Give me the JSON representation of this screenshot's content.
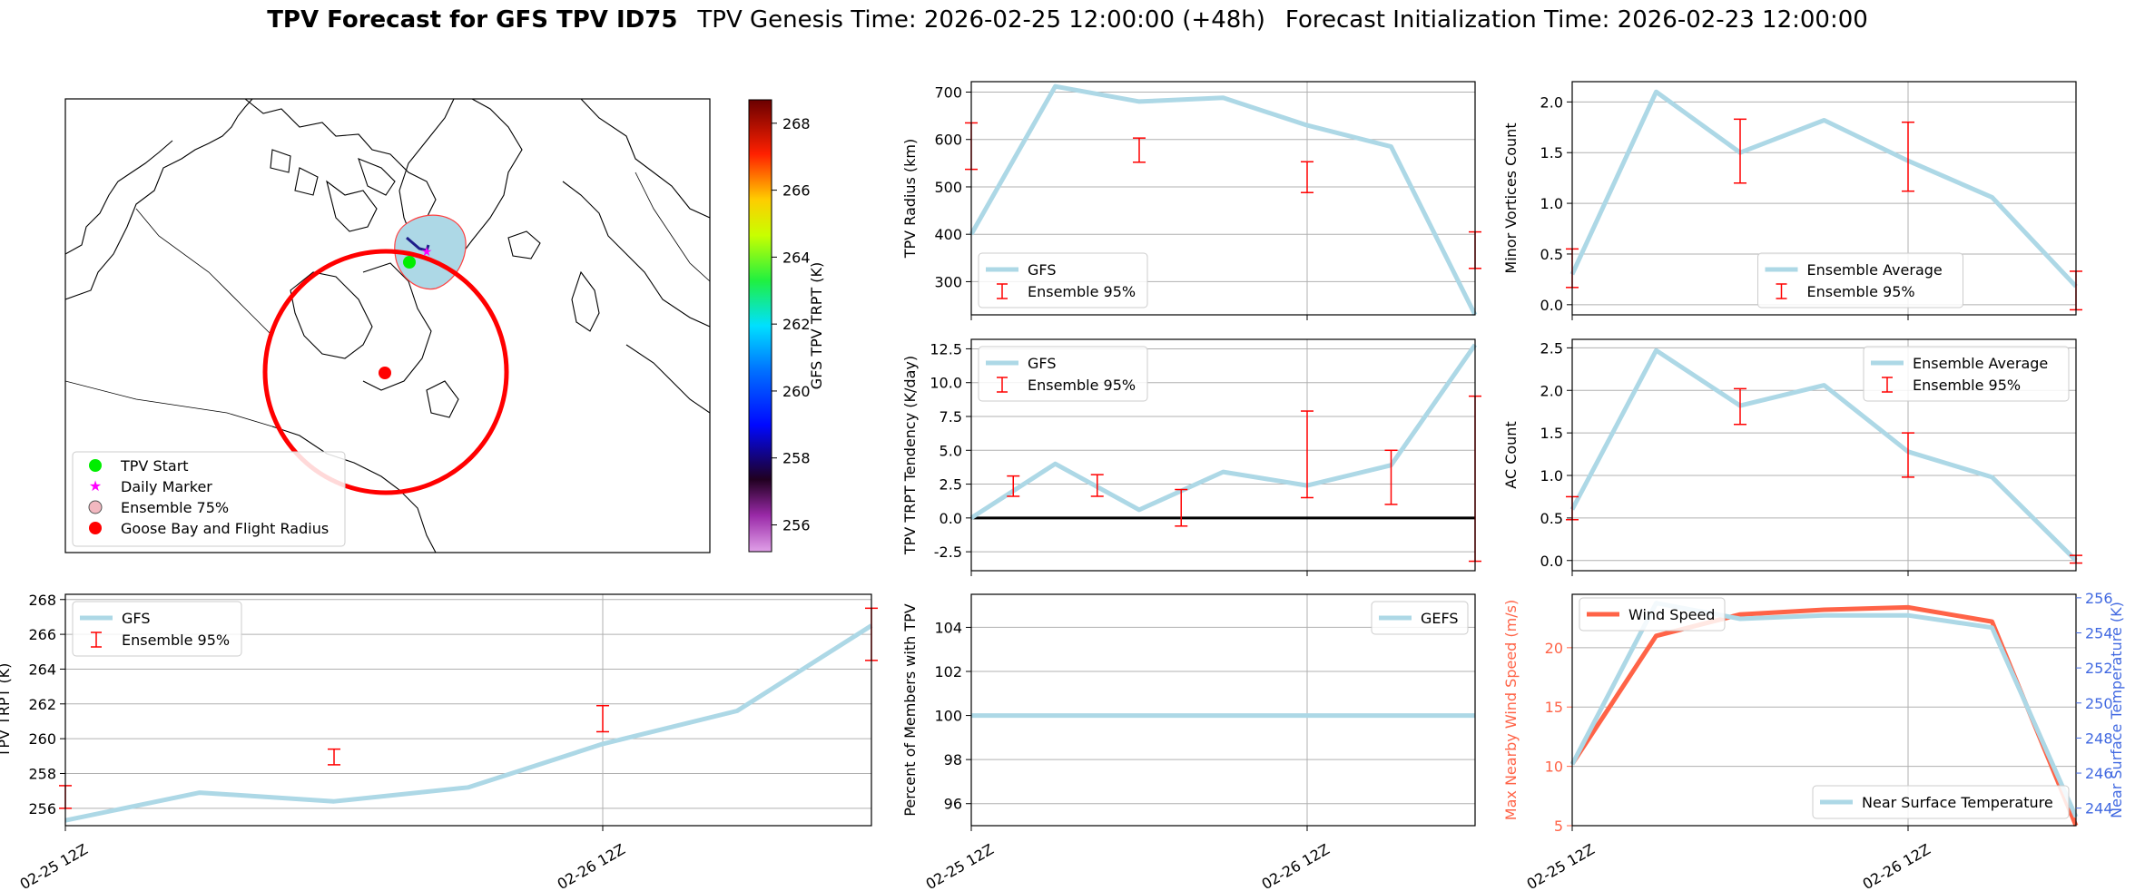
{
  "title": {
    "bold": "TPV Forecast for GFS TPV ID75",
    "genesis": "TPV Genesis Time: 2026-02-25 12:00:00 (+48h)",
    "init": "Forecast Initialization Time: 2026-02-23 12:00:00"
  },
  "colors": {
    "gfs": "#add8e6",
    "ensemble": "#ff0000",
    "wind": "#ff6347",
    "temp": "#4169e1",
    "grid": "#b0b0b0"
  },
  "map": {
    "colorbar": {
      "label": "GFS TPV TRPT (K)",
      "ticks": [
        256,
        258,
        260,
        262,
        264,
        266,
        268
      ],
      "range": [
        255.2,
        268.7
      ]
    },
    "legend": [
      {
        "label": "TPV Start",
        "marker": "green-dot"
      },
      {
        "label": "Daily Marker",
        "marker": "magenta-star"
      },
      {
        "label": "Ensemble 75%",
        "marker": "pink-circle"
      },
      {
        "label": "Goose Bay and Flight Radius",
        "marker": "red-dot"
      }
    ]
  },
  "x_ticks": [
    "02-25 12Z",
    "02-26 12Z"
  ],
  "chart_data": [
    {
      "id": "radius",
      "type": "line",
      "ylabel": "TPV Radius (km)",
      "ylim": [
        230,
        722
      ],
      "yticks": [
        300,
        400,
        500,
        600,
        700
      ],
      "x": [
        0,
        1,
        2,
        3,
        4,
        5,
        6
      ],
      "series": [
        {
          "name": "GFS",
          "values": [
            400,
            712,
            680,
            688,
            630,
            585,
            230
          ]
        }
      ],
      "errorbars": {
        "name": "Ensemble 95%",
        "x": [
          0,
          2,
          4,
          6
        ],
        "low": [
          537,
          552,
          488,
          328
        ],
        "high": [
          635,
          603,
          553,
          405
        ]
      },
      "legend_pos": "lower-left"
    },
    {
      "id": "minor",
      "type": "line",
      "ylabel": "Minor Vortices Count",
      "ylim": [
        -0.1,
        2.2
      ],
      "yticks": [
        0.0,
        0.5,
        1.0,
        1.5,
        2.0
      ],
      "x": [
        0,
        1,
        2,
        3,
        4,
        5,
        6
      ],
      "series": [
        {
          "name": "Ensemble Average",
          "values": [
            0.3,
            2.1,
            1.5,
            1.82,
            1.42,
            1.06,
            0.18
          ]
        }
      ],
      "errorbars": {
        "name": "Ensemble 95%",
        "x": [
          0,
          2,
          4,
          6
        ],
        "low": [
          0.17,
          1.2,
          1.12,
          -0.05
        ],
        "high": [
          0.55,
          1.83,
          1.8,
          0.33
        ]
      },
      "legend_pos": "lower-center"
    },
    {
      "id": "tendency",
      "type": "line",
      "ylabel": "TPV TRPT Tendency (K/day)",
      "ylim": [
        -3.9,
        13.2
      ],
      "yticks": [
        -2.5,
        0.0,
        2.5,
        5.0,
        7.5,
        10.0,
        12.5
      ],
      "x": [
        0,
        1,
        2,
        3,
        4,
        5,
        6
      ],
      "series": [
        {
          "name": "GFS",
          "values": [
            0.0,
            4.0,
            0.6,
            3.4,
            2.4,
            3.9,
            12.8
          ]
        }
      ],
      "hline": 0,
      "errorbars": {
        "name": "Ensemble 95%",
        "x": [
          0.5,
          1.5,
          2.5,
          4,
          5,
          6
        ],
        "low": [
          1.6,
          1.6,
          -0.6,
          1.5,
          1.0,
          -3.2
        ],
        "high": [
          3.1,
          3.2,
          2.1,
          7.9,
          5.0,
          9.0
        ]
      },
      "legend_pos": "upper-left"
    },
    {
      "id": "ac",
      "type": "line",
      "ylabel": "AC Count",
      "ylim": [
        -0.12,
        2.6
      ],
      "yticks": [
        0.0,
        0.5,
        1.0,
        1.5,
        2.0,
        2.5
      ],
      "x": [
        0,
        1,
        2,
        3,
        4,
        5,
        6
      ],
      "series": [
        {
          "name": "Ensemble Average",
          "values": [
            0.6,
            2.47,
            1.82,
            2.06,
            1.28,
            0.98,
            0.0
          ]
        }
      ],
      "errorbars": {
        "name": "Ensemble 95%",
        "x": [
          0,
          2,
          4,
          6
        ],
        "low": [
          0.48,
          1.6,
          0.98,
          -0.03
        ],
        "high": [
          0.75,
          2.02,
          1.5,
          0.06
        ]
      },
      "legend_pos": "upper-right"
    },
    {
      "id": "trpt",
      "type": "line",
      "ylabel": "TPV TRPT (K)",
      "ylim": [
        255.0,
        268.3
      ],
      "yticks": [
        256,
        258,
        260,
        262,
        264,
        266,
        268
      ],
      "x": [
        0,
        1,
        2,
        3,
        4,
        5,
        6
      ],
      "series": [
        {
          "name": "GFS",
          "values": [
            255.3,
            256.9,
            256.4,
            257.2,
            259.7,
            261.6,
            266.5
          ]
        }
      ],
      "errorbars": {
        "name": "Ensemble 95%",
        "x": [
          0,
          2,
          4,
          6
        ],
        "low": [
          256.0,
          258.5,
          260.4,
          264.5
        ],
        "high": [
          257.3,
          259.4,
          261.9,
          267.5
        ]
      },
      "legend_pos": "upper-left"
    },
    {
      "id": "percent",
      "type": "line",
      "ylabel": "Percent of Members with TPV",
      "ylim": [
        95.0,
        105.5
      ],
      "yticks": [
        96,
        98,
        100,
        102,
        104
      ],
      "x": [
        0,
        6
      ],
      "series": [
        {
          "name": "GEFS",
          "values": [
            100,
            100
          ]
        }
      ],
      "legend_pos": "upper-right"
    },
    {
      "id": "windtemp",
      "type": "line",
      "ylabel": "Max Nearby Wind Speed (m/s)",
      "ylabel2": "Near Surface Temperature (K)",
      "ylim": [
        5,
        24.5
      ],
      "yticks": [
        5,
        10,
        15,
        20
      ],
      "ylim2": [
        243.0,
        256.2
      ],
      "yticks2": [
        244,
        246,
        248,
        250,
        252,
        254,
        256
      ],
      "x": [
        0,
        1,
        2,
        3,
        4,
        5,
        6
      ],
      "series": [
        {
          "name": "Wind Speed",
          "axis": "left",
          "values": [
            10.2,
            21.0,
            22.8,
            23.2,
            23.4,
            22.2,
            5.0
          ]
        },
        {
          "name": "Near Surface Temperature",
          "axis": "right",
          "values": [
            246.5,
            255.7,
            254.8,
            255.0,
            255.0,
            254.3,
            243.5
          ]
        }
      ]
    }
  ]
}
